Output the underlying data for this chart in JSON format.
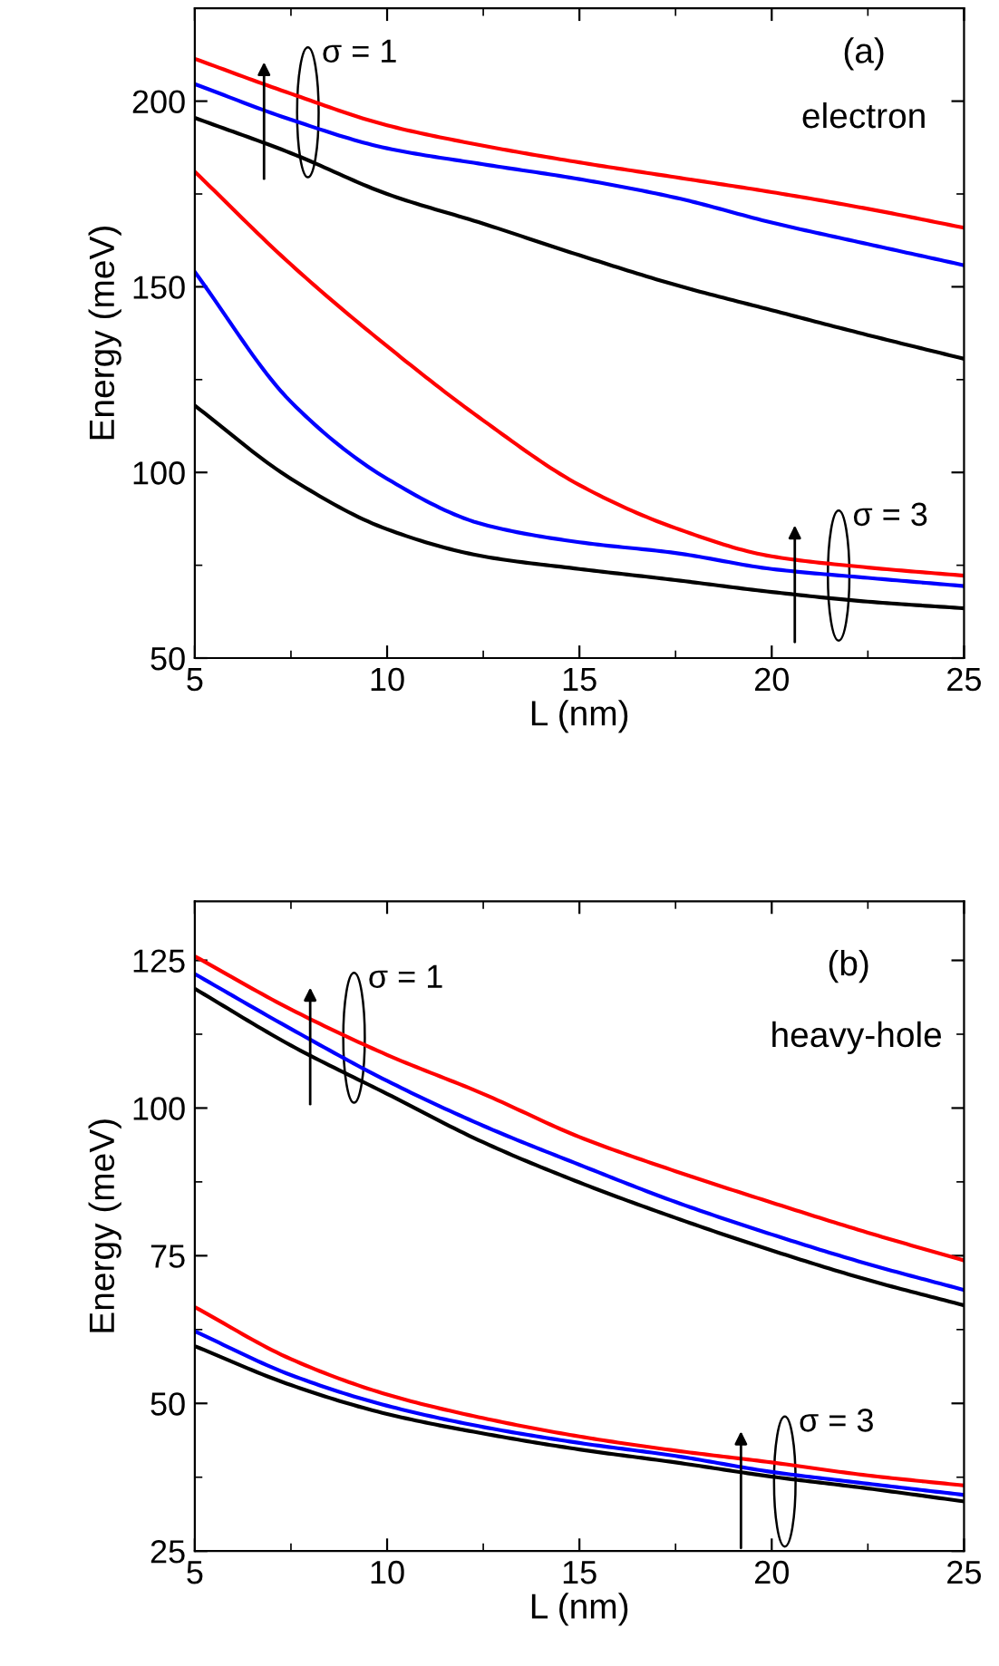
{
  "chart_data": [
    {
      "type": "line",
      "xlabel": "L (nm)",
      "ylabel": "Energy (meV)",
      "x": [
        5,
        7.5,
        10,
        12.5,
        15,
        17.5,
        20,
        22.5,
        25
      ],
      "xlim": [
        5,
        25
      ],
      "xticks": [
        5,
        10,
        15,
        20,
        25
      ],
      "ylim": [
        50,
        225
      ],
      "yticks": [
        50,
        100,
        150,
        200
      ],
      "marker": "none",
      "line_style": "solid",
      "series": [
        {
          "color": "#ff0000",
          "values": [
            211.4,
            202,
            193.5,
            188,
            183.5,
            179.5,
            175.5,
            171,
            165.9
          ]
        },
        {
          "color": "#0000ff",
          "values": [
            204.6,
            195,
            187.3,
            183,
            179,
            174,
            167.3,
            161.5,
            155.8
          ]
        },
        {
          "color": "#000000",
          "values": [
            195.5,
            186,
            175,
            167,
            158.5,
            150.5,
            143.7,
            137,
            130.6
          ]
        },
        {
          "color": "#ff0000",
          "values": [
            181,
            156,
            134,
            114,
            96.6,
            85,
            77.4,
            74.4,
            72.2
          ]
        },
        {
          "color": "#0000ff",
          "values": [
            154,
            119,
            98.3,
            86,
            81.2,
            78.3,
            74,
            71.6,
            69.4
          ]
        },
        {
          "color": "#000000",
          "values": [
            118,
            98.3,
            84.7,
            77.4,
            74,
            71,
            67.8,
            65.2,
            63.4
          ]
        }
      ],
      "annotations": [
        "σ = 1",
        "σ = 3",
        "(a)",
        "electron"
      ]
    },
    {
      "type": "line",
      "xlabel": "L (nm)",
      "ylabel": "Energy (meV)",
      "x": [
        5,
        7.5,
        10,
        12.5,
        15,
        17.5,
        20,
        22.5,
        25
      ],
      "xlim": [
        5,
        25
      ],
      "xticks": [
        5,
        10,
        15,
        20,
        25
      ],
      "ylim": [
        25,
        135
      ],
      "yticks": [
        25,
        50,
        75,
        100,
        125
      ],
      "marker": "none",
      "line_style": "solid",
      "series": [
        {
          "color": "#ff0000",
          "values": [
            125.7,
            116.7,
            109,
            102.4,
            95.1,
            89.3,
            84,
            78.9,
            74.2
          ]
        },
        {
          "color": "#0000ff",
          "values": [
            122.7,
            113.4,
            104.6,
            97,
            90.4,
            84.1,
            78.6,
            73.6,
            69.2
          ]
        },
        {
          "color": "#000000",
          "values": [
            120.2,
            110.6,
            102.4,
            94.2,
            87.4,
            81.4,
            75.9,
            70.9,
            66.6
          ]
        },
        {
          "color": "#ff0000",
          "values": [
            66.3,
            57.5,
            51.5,
            47.5,
            44.4,
            42,
            40,
            37.8,
            36.1
          ]
        },
        {
          "color": "#0000ff",
          "values": [
            62.2,
            54.8,
            49.6,
            46,
            43.3,
            41.1,
            38.4,
            36.4,
            34.5
          ]
        },
        {
          "color": "#000000",
          "values": [
            59.7,
            53.1,
            48.2,
            44.9,
            42.2,
            40,
            37.6,
            35.6,
            33.4
          ]
        }
      ],
      "annotations": [
        "σ = 1",
        "σ = 3",
        "(b)",
        "heavy-hole"
      ]
    }
  ]
}
